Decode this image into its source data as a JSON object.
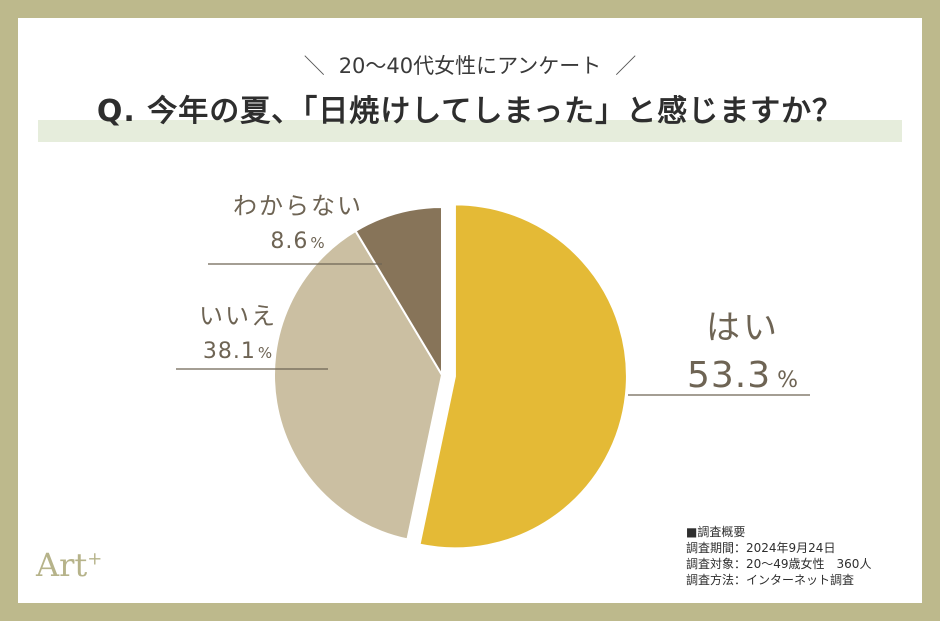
{
  "header": {
    "subtitle": "20〜40代女性にアンケート",
    "slash_left": "＼",
    "slash_right": "／",
    "question": "Q. 今年の夏、「日焼けしてしまった」と感じますか？"
  },
  "chart_data": {
    "type": "pie",
    "slices": [
      {
        "label": "はい",
        "value": 53.3,
        "display": "53.3",
        "color": "#e4ba36"
      },
      {
        "label": "いいえ",
        "value": 38.1,
        "display": "38.1",
        "color": "#cbbfa2"
      },
      {
        "label": "わからない",
        "value": 8.6,
        "display": "8.6",
        "color": "#877459"
      }
    ],
    "unit": "%",
    "start": "12 o'clock",
    "direction": "clockwise",
    "exploded_slice": "はい"
  },
  "logo": {
    "text": "Art",
    "superscript": "+"
  },
  "notes": {
    "heading": "■調査概要",
    "lines": [
      "調査期間：2024年9月24日",
      "調査対象：20〜49歳女性　360人",
      "調査方法：インターネット調査"
    ]
  }
}
